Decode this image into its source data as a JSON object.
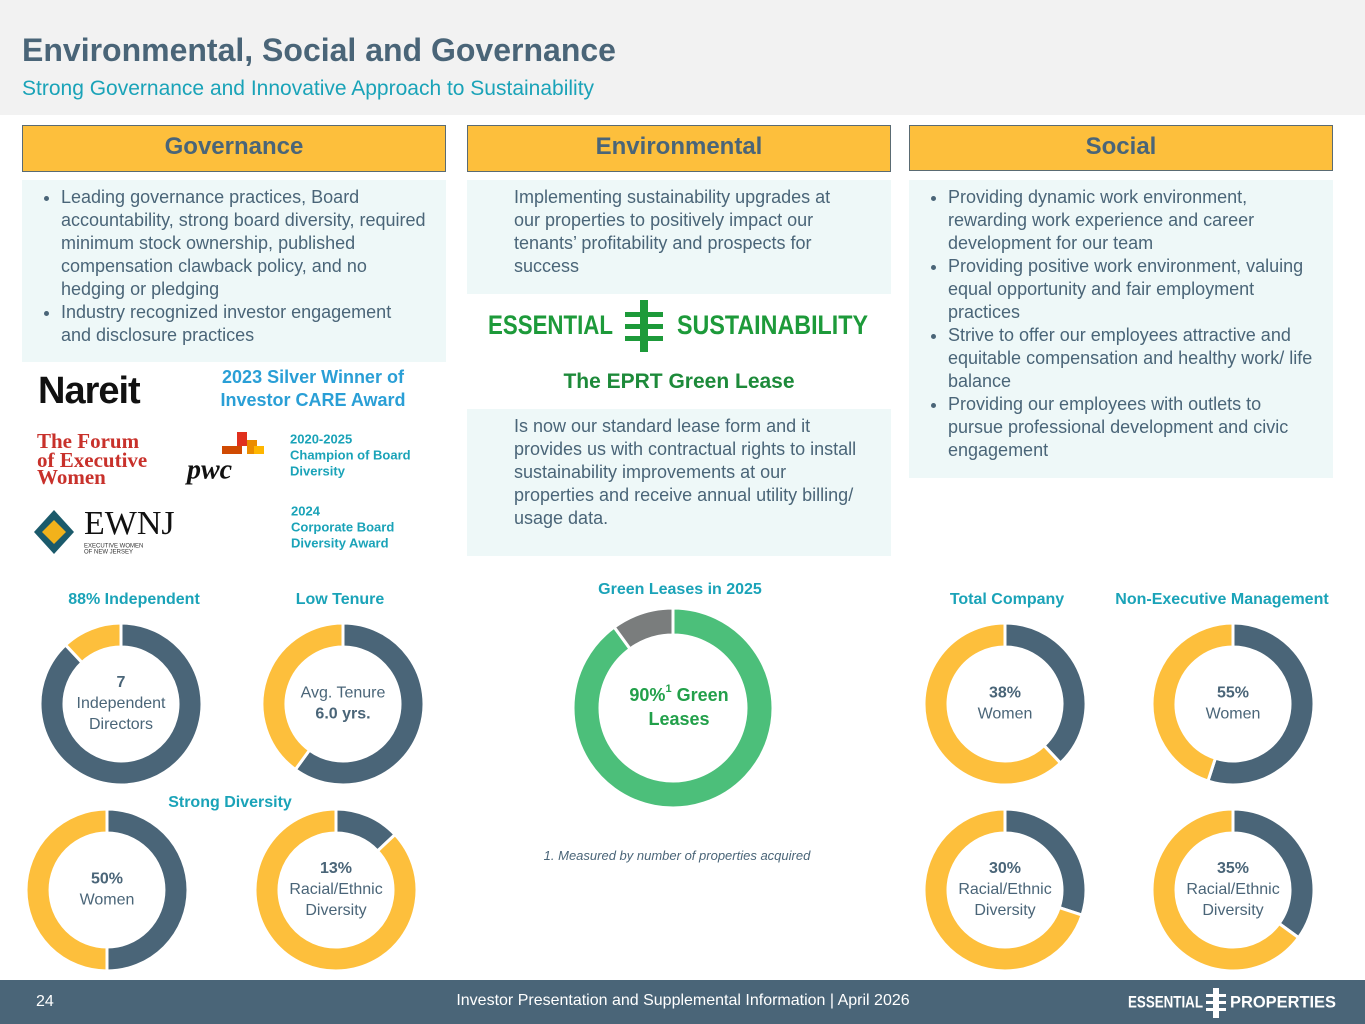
{
  "header": {
    "title": "Environmental, Social and Governance",
    "subtitle": "Strong Governance and Innovative Approach to Sustainability"
  },
  "governance": {
    "heading": "Governance",
    "bullets": [
      "Leading governance practices, Board accountability, strong board diversity, required minimum stock ownership, published compensation clawback policy, and no hedging or pledging",
      "Industry recognized investor engagement and disclosure practices"
    ],
    "logos": {
      "nareit": "Nareit",
      "forum": [
        "The Forum",
        "of Executive",
        "Women"
      ],
      "pwc": "pwc",
      "ewnj": "EWNJ",
      "ewnj_sub": [
        "EXECUTIVE WOMEN",
        "OF NEW JERSEY"
      ]
    },
    "awards": [
      [
        "2023 Silver Winner of",
        "Investor CARE Award"
      ],
      [
        "2020-2025",
        "Champion of Board",
        "Diversity"
      ],
      [
        "2024",
        "Corporate Board",
        "Diversity Award"
      ]
    ]
  },
  "environmental": {
    "heading": "Environmental",
    "text": "Implementing sustainability upgrades at our properties to positively impact our tenants’ profitability and prospects for success",
    "logo": [
      "ESSENTIAL",
      "SUSTAINABILITY"
    ],
    "lease_title": "The EPRT Green Lease",
    "lease_text": "Is now our standard lease form and it provides us with contractual rights to install sustainability improvements at our properties and receive annual utility billing/ usage data."
  },
  "social": {
    "heading": "Social",
    "bullets": [
      "Providing dynamic work environment, rewarding work experience and career development for our team",
      "Providing positive work environment, valuing equal opportunity and fair employment practices",
      "Strive to offer our employees attractive and equitable compensation and healthy work/ life balance",
      "Providing our employees with outlets to pursue professional development and civic engagement"
    ]
  },
  "chart_titles": [
    "88% Independent",
    "Low Tenure",
    "Strong Diversity",
    "Green Leases in 2025",
    "Total Company",
    "Non-Executive Management"
  ],
  "donuts": [
    {
      "type": "donut",
      "values": [
        88,
        12
      ],
      "colors": [
        "#4a6578",
        "#fdbf3c"
      ],
      "center": [
        {
          "text": "7",
          "bold": true
        },
        {
          "text": "Independent"
        },
        {
          "text": "Directors"
        }
      ]
    },
    {
      "type": "donut",
      "values": [
        60,
        40
      ],
      "colors": [
        "#4a6578",
        "#fdbf3c"
      ],
      "center": [
        {
          "text": "Avg. Tenure"
        },
        {
          "text": "6.0 yrs.",
          "bold": true
        }
      ]
    },
    {
      "type": "donut",
      "values": [
        50,
        50
      ],
      "colors": [
        "#4a6578",
        "#fdbf3c"
      ],
      "center": [
        {
          "text": "50%",
          "bold": true
        },
        {
          "text": "Women"
        }
      ]
    },
    {
      "type": "donut",
      "values": [
        13,
        87
      ],
      "colors": [
        "#4a6578",
        "#fdbf3c"
      ],
      "center": [
        {
          "text": "13%",
          "bold": true
        },
        {
          "text": "Racial/Ethnic"
        },
        {
          "text": "Diversity"
        }
      ]
    },
    {
      "type": "donut",
      "values": [
        90,
        10
      ],
      "colors": [
        "#4cbf7a",
        "#7a7d7d"
      ],
      "center": [
        {
          "text": "90%",
          "sup": "1",
          "after": "Green",
          "bold": true,
          "color": "#22a04a"
        },
        {
          "text": "Leases",
          "bold": true,
          "color": "#22a04a"
        }
      ]
    },
    {
      "type": "donut",
      "values": [
        38,
        62
      ],
      "colors": [
        "#4a6578",
        "#fdbf3c"
      ],
      "center": [
        {
          "text": "38%",
          "bold": true
        },
        {
          "text": "Women"
        }
      ]
    },
    {
      "type": "donut",
      "values": [
        55,
        45
      ],
      "colors": [
        "#4a6578",
        "#fdbf3c"
      ],
      "center": [
        {
          "text": "55%",
          "bold": true
        },
        {
          "text": "Women"
        }
      ]
    },
    {
      "type": "donut",
      "values": [
        30,
        70
      ],
      "colors": [
        "#4a6578",
        "#fdbf3c"
      ],
      "center": [
        {
          "text": "30%",
          "bold": true
        },
        {
          "text": "Racial/Ethnic"
        },
        {
          "text": "Diversity"
        }
      ]
    },
    {
      "type": "donut",
      "values": [
        35,
        65
      ],
      "colors": [
        "#4a6578",
        "#fdbf3c"
      ],
      "center": [
        {
          "text": "35%",
          "bold": true
        },
        {
          "text": "Racial/Ethnic"
        },
        {
          "text": "Diversity"
        }
      ]
    }
  ],
  "footnote": "1. Measured by number of properties acquired",
  "footer": {
    "page": "24",
    "text": "Investor Presentation and Supplemental Information |  April 2026",
    "logo": [
      "ESSENTIAL",
      "PROPERTIES"
    ]
  }
}
